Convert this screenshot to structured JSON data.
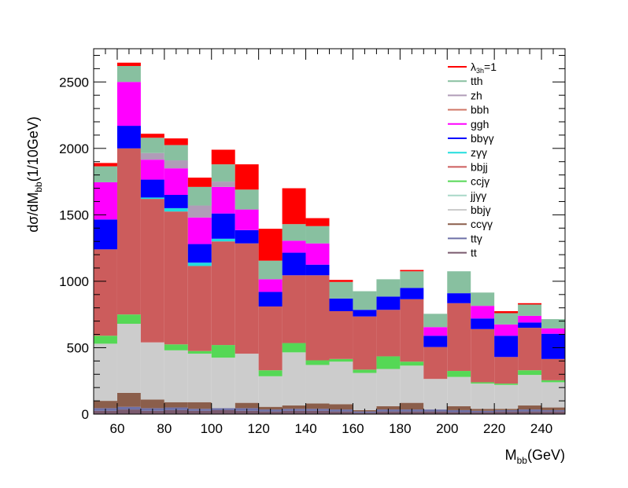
{
  "chart_data": {
    "type": "bar",
    "stacked": true,
    "xlabel_main": "M",
    "xlabel_sub": "bb",
    "xlabel_unit": "(GeV)",
    "ylabel_prefix": "dσ/dM",
    "ylabel_sub": "bb",
    "ylabel_suffix": "(1/10GeV)",
    "xlim": [
      50,
      250
    ],
    "ylim": [
      0,
      2750
    ],
    "bin_edges": [
      50,
      60,
      70,
      80,
      90,
      100,
      110,
      120,
      130,
      140,
      150,
      160,
      170,
      180,
      190,
      200,
      210,
      220,
      230,
      240,
      250
    ],
    "x_ticks": [
      "60",
      "80",
      "100",
      "120",
      "140",
      "160",
      "180",
      "200",
      "220",
      "240"
    ],
    "x_tick_values": [
      60,
      80,
      100,
      120,
      140,
      160,
      180,
      200,
      220,
      240
    ],
    "y_ticks": [
      "0",
      "500",
      "1000",
      "1500",
      "2000",
      "2500"
    ],
    "y_tick_values": [
      0,
      500,
      1000,
      1500,
      2000,
      2500
    ],
    "legend_position": "top-right",
    "series": [
      {
        "name": "tt",
        "color": "#7a5a6e",
        "values": [
          25,
          35,
          25,
          30,
          25,
          30,
          25,
          20,
          25,
          25,
          20,
          10,
          20,
          20,
          20,
          15,
          15,
          20,
          20,
          20
        ]
      },
      {
        "name": "ttγ",
        "color": "#6e70a8",
        "values": [
          20,
          20,
          20,
          20,
          15,
          15,
          20,
          15,
          15,
          15,
          15,
          10,
          15,
          15,
          15,
          15,
          10,
          10,
          15,
          10
        ]
      },
      {
        "name": "ccγγ",
        "color": "#8b5e4b",
        "values": [
          55,
          105,
          65,
          40,
          50,
          0,
          40,
          20,
          25,
          40,
          40,
          10,
          25,
          50,
          0,
          30,
          15,
          10,
          30,
          20
        ]
      },
      {
        "name": "bbjγ",
        "color": "#cccccc",
        "values": [
          430,
          520,
          430,
          390,
          365,
          380,
          370,
          230,
          400,
          290,
          320,
          280,
          280,
          280,
          230,
          220,
          190,
          180,
          230,
          190
        ]
      },
      {
        "name": "jjγγ",
        "color": "#a8d8c8",
        "values": [
          0,
          0,
          0,
          0,
          0,
          0,
          0,
          0,
          0,
          0,
          0,
          0,
          0,
          0,
          0,
          0,
          0,
          0,
          0,
          0
        ]
      },
      {
        "name": "ccjγ",
        "color": "#55d855",
        "values": [
          60,
          70,
          0,
          45,
          20,
          95,
          0,
          45,
          70,
          35,
          20,
          25,
          95,
          30,
          0,
          45,
          10,
          10,
          35,
          15
        ]
      },
      {
        "name": "bbjj",
        "color": "#cc5c5c",
        "values": [
          650,
          1250,
          1080,
          1000,
          640,
          780,
          830,
          480,
          510,
          640,
          360,
          400,
          350,
          470,
          240,
          510,
          400,
          200,
          320,
          160
        ]
      },
      {
        "name": "zγγ",
        "color": "#22dddd",
        "values": [
          0,
          0,
          10,
          25,
          25,
          20,
          0,
          0,
          0,
          0,
          0,
          0,
          0,
          0,
          0,
          0,
          0,
          0,
          0,
          0
        ]
      },
      {
        "name": "bbγγ",
        "color": "#0000ff",
        "values": [
          225,
          170,
          135,
          100,
          140,
          190,
          100,
          110,
          170,
          80,
          95,
          50,
          100,
          85,
          85,
          75,
          80,
          160,
          40,
          190
        ]
      },
      {
        "name": "ggh",
        "color": "#ff00ff",
        "values": [
          280,
          330,
          150,
          200,
          200,
          200,
          155,
          95,
          90,
          160,
          0,
          0,
          0,
          0,
          65,
          0,
          95,
          85,
          50,
          40
        ]
      },
      {
        "name": "bbh",
        "color": "#d07868",
        "values": [
          0,
          0,
          0,
          0,
          0,
          0,
          0,
          0,
          0,
          0,
          0,
          0,
          0,
          0,
          0,
          0,
          0,
          0,
          0,
          0
        ]
      },
      {
        "name": "zh",
        "color": "#b09cb8",
        "values": [
          0,
          0,
          50,
          60,
          90,
          40,
          0,
          0,
          0,
          0,
          0,
          0,
          0,
          0,
          0,
          0,
          0,
          0,
          0,
          0
        ]
      },
      {
        "name": "tth",
        "color": "#88c0a0",
        "values": [
          120,
          120,
          115,
          115,
          140,
          130,
          150,
          140,
          125,
          130,
          125,
          140,
          130,
          125,
          100,
          165,
          100,
          85,
          85,
          70
        ]
      },
      {
        "name": "λ3h=1",
        "color": "#ff0000",
        "values": [
          25,
          25,
          30,
          50,
          70,
          110,
          190,
          240,
          270,
          60,
          15,
          0,
          0,
          10,
          0,
          0,
          0,
          15,
          10,
          0
        ]
      }
    ],
    "legend": [
      {
        "label": "λ",
        "sub": "3h",
        "tail": "=1",
        "color": "#ff0000",
        "style": "line"
      },
      {
        "label": "tth",
        "color": "#88c0a0",
        "style": "line"
      },
      {
        "label": "zh",
        "color": "#b09cb8",
        "style": "line"
      },
      {
        "label": "bbh",
        "color": "#d07868",
        "style": "line"
      },
      {
        "label": "ggh",
        "color": "#ff00ff",
        "style": "line"
      },
      {
        "label": "bbγγ",
        "color": "#0000ff",
        "style": "line"
      },
      {
        "label": "zγγ",
        "color": "#22dddd",
        "style": "line"
      },
      {
        "label": "bbjj",
        "color": "#cc5c5c",
        "style": "line"
      },
      {
        "label": "ccjγ",
        "color": "#55d855",
        "style": "line"
      },
      {
        "label": "jjγγ",
        "color": "#a8d8c8",
        "style": "line"
      },
      {
        "label": "bbjγ",
        "color": "#cccccc",
        "style": "line"
      },
      {
        "label": "ccγγ",
        "color": "#8b5e4b",
        "style": "line"
      },
      {
        "label": "ttγ",
        "color": "#6e70a8",
        "style": "line"
      },
      {
        "label": "tt",
        "color": "#7a5a6e",
        "style": "line"
      }
    ]
  }
}
